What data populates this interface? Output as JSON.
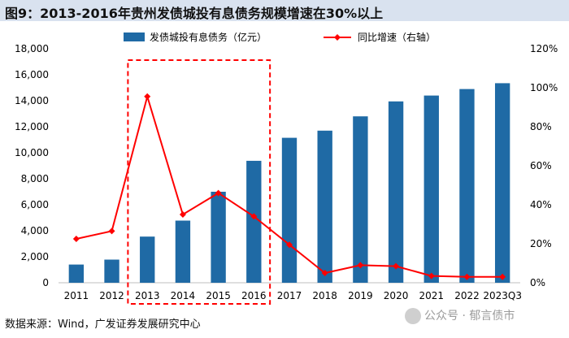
{
  "header": {
    "title": "图9：2013-2016年贵州发债城投有息债务规模增速在30%以上"
  },
  "source_text": "数据来源：Wind，广发证券发展研究中心",
  "watermark_text": "公众号 · 郁言债市",
  "chart_data": {
    "type": "bar+line",
    "categories": [
      "2011",
      "2012",
      "2013",
      "2014",
      "2015",
      "2016",
      "2017",
      "2018",
      "2019",
      "2020",
      "2021",
      "2022",
      "2023Q3"
    ],
    "series": [
      {
        "name": "发债城投有息债务（亿元）",
        "type": "bar",
        "axis": "left",
        "color": "#1f6aa5",
        "values": [
          1400,
          1780,
          3550,
          4780,
          7000,
          9380,
          11150,
          11700,
          12800,
          13950,
          14400,
          14900,
          15350
        ]
      },
      {
        "name": "同比增速（右轴）",
        "type": "line",
        "axis": "right",
        "color": "#ff0000",
        "values": [
          0.225,
          0.265,
          0.955,
          0.35,
          0.46,
          0.34,
          0.195,
          0.05,
          0.09,
          0.085,
          0.035,
          0.03,
          0.03
        ]
      }
    ],
    "left_axis": {
      "min": 0,
      "max": 18000,
      "ticks": [
        0,
        2000,
        4000,
        6000,
        8000,
        10000,
        12000,
        14000,
        16000,
        18000
      ],
      "tick_labels": [
        "0",
        "2,000",
        "4,000",
        "6,000",
        "8,000",
        "10,000",
        "12,000",
        "14,000",
        "16,000",
        "18,000"
      ]
    },
    "right_axis": {
      "min": 0,
      "max": 1.2,
      "ticks": [
        0,
        0.2,
        0.4,
        0.6,
        0.8,
        1.0,
        1.2
      ],
      "tick_labels": [
        "0%",
        "20%",
        "40%",
        "60%",
        "80%",
        "100%",
        "120%"
      ]
    },
    "highlight": {
      "from": "2013",
      "to": "2016",
      "style": "dashed",
      "color": "#ff0000"
    },
    "legend_position": "top-center"
  }
}
